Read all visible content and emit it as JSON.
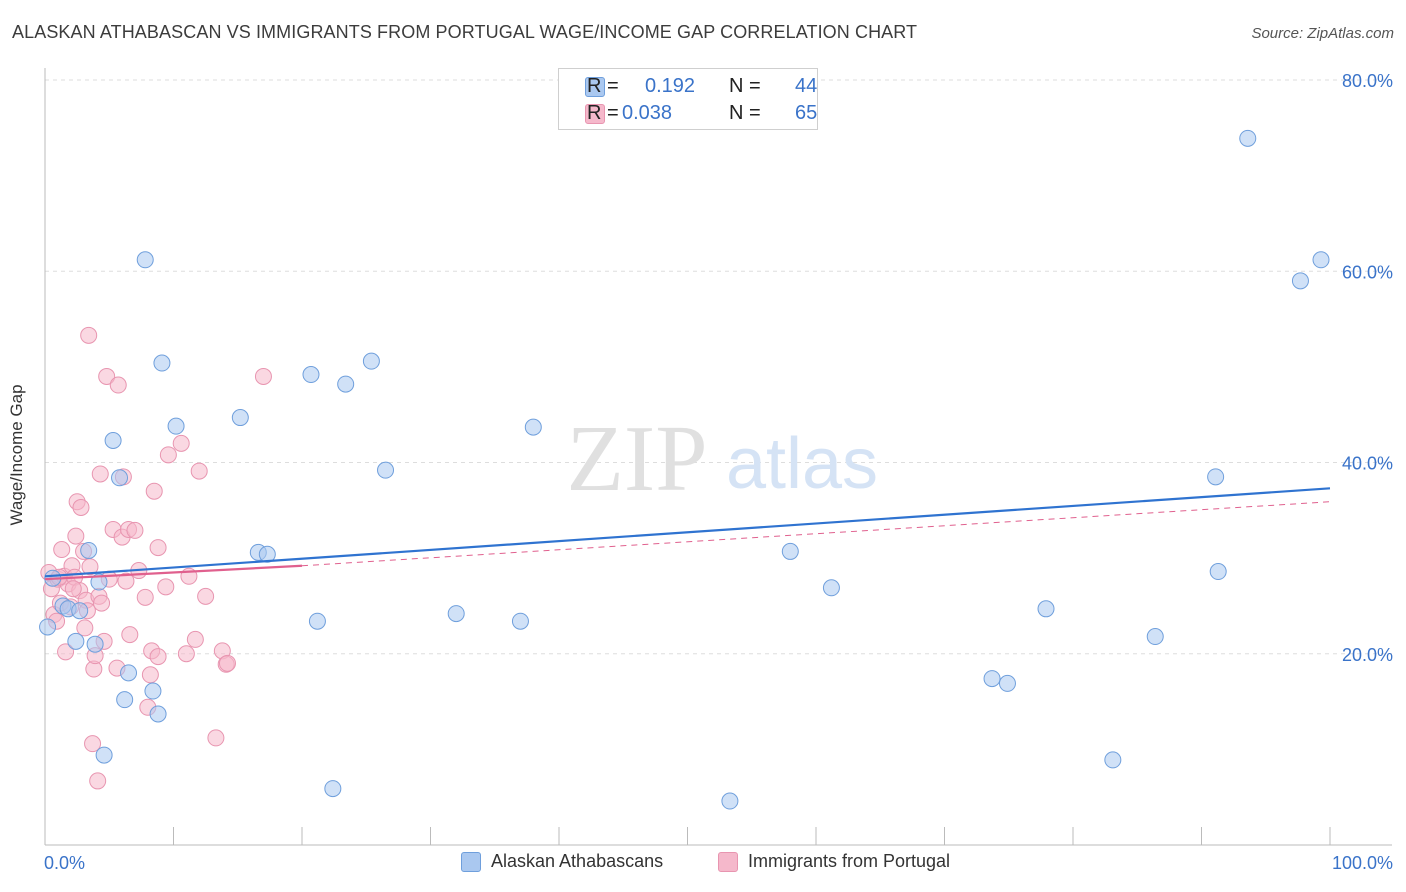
{
  "header": {
    "title": "ALASKAN ATHABASCAN VS IMMIGRANTS FROM PORTUGAL WAGE/INCOME GAP CORRELATION CHART",
    "source": "Source: ZipAtlas.com"
  },
  "watermark": {
    "zip": "ZIP",
    "atlas": "atlas"
  },
  "legend_top": {
    "rows": [
      {
        "r_label": "R =",
        "r_value": "0.192",
        "n_label": "N =",
        "n_value": "44"
      },
      {
        "r_label": "R =",
        "r_value": "0.038",
        "n_label": "N =",
        "n_value": "65"
      }
    ]
  },
  "legend_bottom": {
    "series1": "Alaskan Athabascans",
    "series2": "Immigrants from Portugal"
  },
  "colors": {
    "blue_fill": "#aac8f0",
    "blue_stroke": "#6f9fdc",
    "blue_line": "#2f73d0",
    "pink_fill": "#f5b8cb",
    "pink_stroke": "#e895b0",
    "pink_line": "#e0608e",
    "axis_text": "#3a73c9",
    "grid": "#dddddd"
  },
  "chart_data": {
    "type": "scatter",
    "title": "ALASKAN ATHABASCAN VS IMMIGRANTS FROM PORTUGAL WAGE/INCOME GAP CORRELATION CHART",
    "xlabel": "",
    "ylabel": "Wage/Income Gap",
    "xlim": [
      0,
      100
    ],
    "ylim": [
      0,
      80
    ],
    "x_tick_labels": [
      {
        "value": 0,
        "label": "0.0%"
      },
      {
        "value": 100,
        "label": "100.0%"
      }
    ],
    "y_tick_labels": [
      {
        "value": 20,
        "label": "20.0%"
      },
      {
        "value": 40,
        "label": "40.0%"
      },
      {
        "value": 60,
        "label": "60.0%"
      },
      {
        "value": 80,
        "label": "80.0%"
      }
    ],
    "series": [
      {
        "name": "Alaskan Athabascans",
        "R": 0.192,
        "N": 44,
        "trend": {
          "x0": 0,
          "y0": 28.1,
          "x1": 100,
          "y1": 37.3,
          "style": "solid"
        },
        "points": [
          [
            0.2,
            22.8
          ],
          [
            0.6,
            27.9
          ],
          [
            1.4,
            25.0
          ],
          [
            1.8,
            24.7
          ],
          [
            2.4,
            21.3
          ],
          [
            2.7,
            24.5
          ],
          [
            3.4,
            30.8
          ],
          [
            4.2,
            27.5
          ],
          [
            3.9,
            21.0
          ],
          [
            4.6,
            9.4
          ],
          [
            5.3,
            42.3
          ],
          [
            5.8,
            38.4
          ],
          [
            6.5,
            18.0
          ],
          [
            6.2,
            15.2
          ],
          [
            7.8,
            61.2
          ],
          [
            8.4,
            16.1
          ],
          [
            8.8,
            13.7
          ],
          [
            9.1,
            50.4
          ],
          [
            10.2,
            43.8
          ],
          [
            15.2,
            44.7
          ],
          [
            16.6,
            30.6
          ],
          [
            17.3,
            30.4
          ],
          [
            20.7,
            49.2
          ],
          [
            21.2,
            23.4
          ],
          [
            22.4,
            5.9
          ],
          [
            23.4,
            48.2
          ],
          [
            25.4,
            50.6
          ],
          [
            26.5,
            39.2
          ],
          [
            32.0,
            24.2
          ],
          [
            37.0,
            23.4
          ],
          [
            38.0,
            43.7
          ],
          [
            53.3,
            4.6
          ],
          [
            58.0,
            30.7
          ],
          [
            61.2,
            26.9
          ],
          [
            73.7,
            17.4
          ],
          [
            74.9,
            16.9
          ],
          [
            77.9,
            24.7
          ],
          [
            83.1,
            8.9
          ],
          [
            86.4,
            21.8
          ],
          [
            91.1,
            38.5
          ],
          [
            91.3,
            28.6
          ],
          [
            93.6,
            73.9
          ],
          [
            97.7,
            59.0
          ],
          [
            99.3,
            61.2
          ]
        ]
      },
      {
        "name": "Immigrants from Portugal",
        "R": 0.038,
        "N": 65,
        "trend": {
          "x0": 0,
          "y0": 27.8,
          "x1": 20,
          "y1": 29.2,
          "style": "solid",
          "extension": {
            "x1": 100,
            "y1": 35.9,
            "style": "dashed"
          }
        },
        "points": [
          [
            0.3,
            28.5
          ],
          [
            0.5,
            26.8
          ],
          [
            0.7,
            24.1
          ],
          [
            0.9,
            23.4
          ],
          [
            1.0,
            27.8
          ],
          [
            1.2,
            25.3
          ],
          [
            1.3,
            30.9
          ],
          [
            1.5,
            28.1
          ],
          [
            1.6,
            20.2
          ],
          [
            1.8,
            27.3
          ],
          [
            2.0,
            24.9
          ],
          [
            2.1,
            29.2
          ],
          [
            2.3,
            28.0
          ],
          [
            2.4,
            32.3
          ],
          [
            2.5,
            35.9
          ],
          [
            2.7,
            26.6
          ],
          [
            2.8,
            35.3
          ],
          [
            3.0,
            30.7
          ],
          [
            3.1,
            22.7
          ],
          [
            3.2,
            25.6
          ],
          [
            3.4,
            53.3
          ],
          [
            3.5,
            29.1
          ],
          [
            3.7,
            10.6
          ],
          [
            3.8,
            18.4
          ],
          [
            3.9,
            19.8
          ],
          [
            4.1,
            6.7
          ],
          [
            4.2,
            26.0
          ],
          [
            4.3,
            38.8
          ],
          [
            4.4,
            25.3
          ],
          [
            4.6,
            21.3
          ],
          [
            4.8,
            49.0
          ],
          [
            5.0,
            27.8
          ],
          [
            5.3,
            33.0
          ],
          [
            5.6,
            18.5
          ],
          [
            5.7,
            48.1
          ],
          [
            6.0,
            32.2
          ],
          [
            6.1,
            38.5
          ],
          [
            6.5,
            33.0
          ],
          [
            6.6,
            22.0
          ],
          [
            7.0,
            32.9
          ],
          [
            7.3,
            28.7
          ],
          [
            7.8,
            25.9
          ],
          [
            8.0,
            14.4
          ],
          [
            8.2,
            17.8
          ],
          [
            8.3,
            20.3
          ],
          [
            8.5,
            37.0
          ],
          [
            8.8,
            31.1
          ],
          [
            8.8,
            19.7
          ],
          [
            9.4,
            27.0
          ],
          [
            9.6,
            40.8
          ],
          [
            10.6,
            42.0
          ],
          [
            11.0,
            20.0
          ],
          [
            11.2,
            28.1
          ],
          [
            11.7,
            21.5
          ],
          [
            12.0,
            39.1
          ],
          [
            12.5,
            26.0
          ],
          [
            13.3,
            11.2
          ],
          [
            13.8,
            20.3
          ],
          [
            14.1,
            18.9
          ],
          [
            14.2,
            19.0
          ],
          [
            1.1,
            28.0
          ],
          [
            2.2,
            26.8
          ],
          [
            3.3,
            24.5
          ],
          [
            6.3,
            27.6
          ],
          [
            17.0,
            49.0
          ]
        ]
      }
    ],
    "grid": true,
    "legend": "top-center"
  }
}
